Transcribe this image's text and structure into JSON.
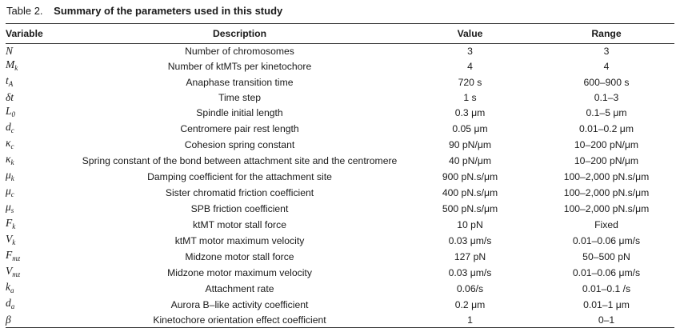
{
  "caption": {
    "number": "Table 2.",
    "title": "Summary of the parameters used in this study"
  },
  "headers": {
    "variable": "Variable",
    "description": "Description",
    "value": "Value",
    "range": "Range"
  },
  "rows": [
    {
      "symbol": "N",
      "sub": "",
      "description": "Number of chromosomes",
      "value": "3",
      "range": "3"
    },
    {
      "symbol": "M",
      "sub": "k",
      "description": "Number of ktMTs per kinetochore",
      "value": "4",
      "range": "4"
    },
    {
      "symbol": "t",
      "sub": "A",
      "description": "Anaphase transition time",
      "value": "720 s",
      "range": "600–900 s"
    },
    {
      "symbol": "δt",
      "sub": "",
      "description": "Time step",
      "value": "1 s",
      "range": "0.1–3"
    },
    {
      "symbol": "L",
      "sub": "0",
      "description": "Spindle initial length",
      "value": "0.3 μm",
      "range": "0.1–5 μm"
    },
    {
      "symbol": "d",
      "sub": "c",
      "description": "Centromere pair rest length",
      "value": "0.05 μm",
      "range": "0.01–0.2 μm"
    },
    {
      "symbol": "κ",
      "sub": "c",
      "description": "Cohesion spring constant",
      "value": "90 pN/μm",
      "range": "10–200 pN/μm"
    },
    {
      "symbol": "κ",
      "sub": "k",
      "description": "Spring constant of the bond between attachment site and the centromere",
      "value": "40 pN/μm",
      "range": "10–200 pN/μm"
    },
    {
      "symbol": "μ",
      "sub": "k",
      "description": "Damping coefficient for the attachment site",
      "value": "900 pN.s/μm",
      "range": "100–2,000 pN.s/μm"
    },
    {
      "symbol": "μ",
      "sub": "c",
      "description": "Sister chromatid friction coefficient",
      "value": "400 pN.s/μm",
      "range": "100–2,000 pN.s/μm"
    },
    {
      "symbol": "μ",
      "sub": "s",
      "description": "SPB friction coefficient",
      "value": "500 pN.s/μm",
      "range": "100–2,000 pN.s/μm"
    },
    {
      "symbol": "F",
      "sub": "k",
      "description": "ktMT motor stall force",
      "value": "10 pN",
      "range": "Fixed"
    },
    {
      "symbol": "V",
      "sub": "k",
      "description": "ktMT motor maximum velocity",
      "value": "0.03 μm/s",
      "range": "0.01–0.06 μm/s"
    },
    {
      "symbol": "F",
      "sub": "mz",
      "description": "Midzone motor stall force",
      "value": "127 pN",
      "range": "50–500 pN"
    },
    {
      "symbol": "V",
      "sub": "mz",
      "description": "Midzone motor maximum velocity",
      "value": "0.03 μm/s",
      "range": "0.01–0.06 μm/s"
    },
    {
      "symbol": "k",
      "sub": "a",
      "description": "Attachment rate",
      "value": "0.06/s",
      "range": "0.01–0.1 /s"
    },
    {
      "symbol": "d",
      "sub": "a",
      "description": "Aurora B–like activity coefficient",
      "value": "0.2 μm",
      "range": "0.01–1 μm"
    },
    {
      "symbol": "β",
      "sub": "",
      "description": "Kinetochore orientation effect coefficient",
      "value": "1",
      "range": "0–1"
    }
  ]
}
